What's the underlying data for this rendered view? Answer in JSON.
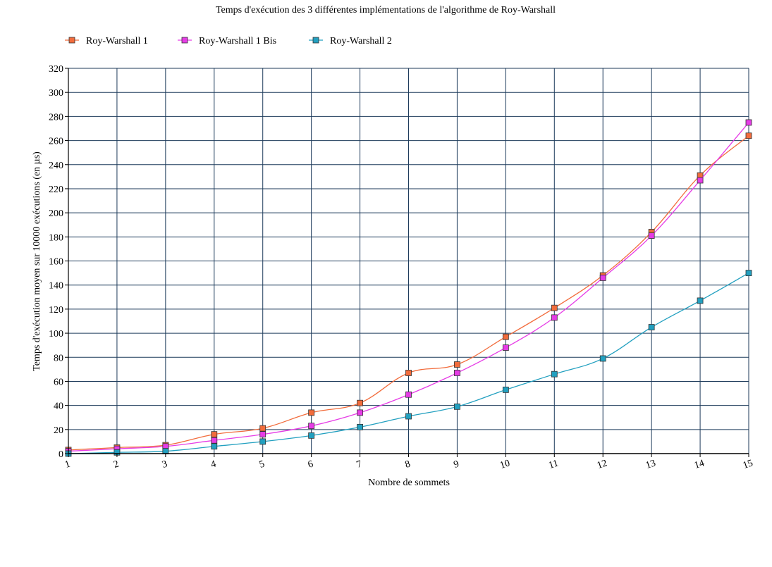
{
  "chart_data": {
    "type": "line",
    "title": "Temps d'exécution des 3 différentes implémentations de l'algorithme de Roy-Warshall",
    "xlabel": "Nombre de sommets",
    "ylabel": "Temps d'exécution moyen sur 10000 exécutions (en µs)",
    "x": [
      1,
      2,
      3,
      4,
      5,
      6,
      7,
      8,
      9,
      10,
      11,
      12,
      13,
      14,
      15
    ],
    "xlim": [
      1,
      15
    ],
    "ylim": [
      0,
      320
    ],
    "yticks": [
      0,
      20,
      40,
      60,
      80,
      100,
      120,
      140,
      160,
      180,
      200,
      220,
      240,
      260,
      280,
      300,
      320
    ],
    "grid": true,
    "legend_position": "top-left",
    "series": [
      {
        "name": "Roy-Warshall 1",
        "color": "#f26c3c",
        "values": [
          3,
          5,
          7,
          16,
          21,
          34,
          42,
          67,
          74,
          97,
          121,
          148,
          184,
          231,
          264
        ]
      },
      {
        "name": "Roy-Warshall 1 Bis",
        "color": "#e63ce6",
        "values": [
          2,
          4,
          6,
          11,
          16,
          23,
          34,
          49,
          67,
          88,
          113,
          146,
          181,
          227,
          275
        ]
      },
      {
        "name": "Roy-Warshall 2",
        "color": "#22a0c0",
        "values": [
          0,
          1,
          2,
          6,
          10,
          15,
          22,
          31,
          39,
          53,
          66,
          79,
          105,
          127,
          150
        ]
      }
    ]
  }
}
